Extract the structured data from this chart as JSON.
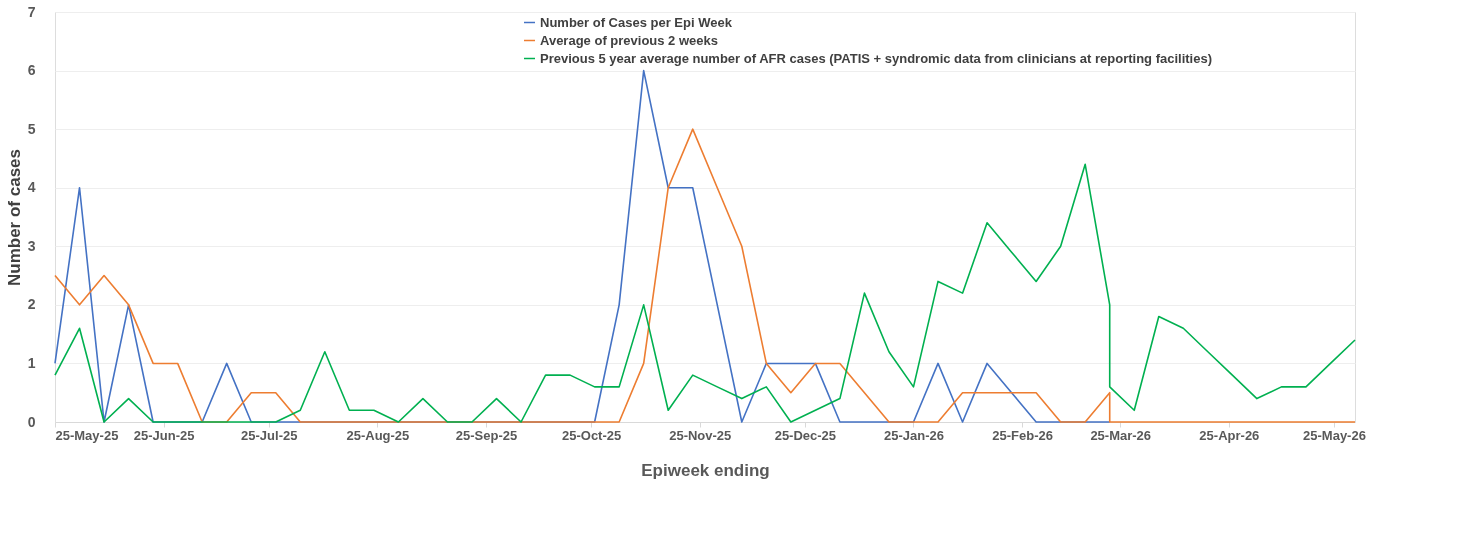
{
  "chart_data": {
    "type": "line",
    "xlabel": "Epiweek ending",
    "ylabel": "Number of cases",
    "x": [
      "2025-05-25",
      "2025-06-01",
      "2025-06-08",
      "2025-06-15",
      "2025-06-22",
      "2025-06-29",
      "2025-07-06",
      "2025-07-13",
      "2025-07-20",
      "2025-07-27",
      "2025-08-03",
      "2025-08-10",
      "2025-08-17",
      "2025-08-24",
      "2025-08-31",
      "2025-09-07",
      "2025-09-14",
      "2025-09-21",
      "2025-09-28",
      "2025-10-05",
      "2025-10-12",
      "2025-10-19",
      "2025-10-26",
      "2025-11-02",
      "2025-11-09",
      "2025-11-16",
      "2025-11-23",
      "2025-11-30",
      "2025-12-07",
      "2025-12-14",
      "2025-12-21",
      "2025-12-28",
      "2026-01-04",
      "2026-01-11",
      "2026-01-18",
      "2026-01-25",
      "2026-02-01",
      "2026-02-08",
      "2026-02-15",
      "2026-02-22",
      "2026-03-01",
      "2026-03-08",
      "2026-03-15",
      "2026-03-22",
      "2026-03-22",
      "2026-03-29",
      "2026-04-05",
      "2026-04-12",
      "2026-04-19",
      "2026-04-26",
      "2026-05-03",
      "2026-05-10",
      "2026-05-17",
      "2026-05-24",
      "2026-05-31"
    ],
    "series": [
      {
        "name": "Number of Cases per Epi Week",
        "color": "#4472c4",
        "values": [
          1,
          4,
          0,
          2,
          0,
          0,
          0,
          1,
          0,
          0,
          0,
          0,
          0,
          0,
          0,
          0,
          0,
          0,
          0,
          0,
          0,
          0,
          0,
          2,
          6,
          4,
          4,
          2,
          0,
          1,
          1,
          1,
          0,
          0,
          0,
          0,
          1,
          0,
          1,
          0.5,
          0,
          0,
          0,
          0,
          0,
          null,
          null,
          null,
          null,
          null,
          null,
          null,
          null,
          null,
          null
        ]
      },
      {
        "name": "Average of previous 2 weeks",
        "color": "#ed7d31",
        "values": [
          2.5,
          2,
          2.5,
          2,
          1,
          1,
          0,
          0,
          0.5,
          0.5,
          0,
          0,
          0,
          0,
          0,
          0,
          0,
          0,
          0,
          0,
          0,
          0,
          0,
          0,
          1,
          4,
          5,
          4,
          3,
          1,
          0.5,
          1,
          1,
          0.5,
          0,
          0,
          0,
          0.5,
          0.5,
          0.5,
          0.5,
          0,
          0,
          0.5,
          0,
          0,
          0,
          0,
          0,
          0,
          0,
          0,
          0,
          0,
          0
        ]
      },
      {
        "name": "Previous 5 year average number of AFR cases (PATIS + syndromic data from clinicians at reporting facilities)",
        "color": "#00b050",
        "values": [
          0.8,
          1.6,
          0,
          0.4,
          0,
          0,
          0,
          0,
          0,
          0,
          0.2,
          1.2,
          0.2,
          0.2,
          0,
          0.4,
          0,
          0,
          0.4,
          0,
          0.8,
          0.8,
          0.6,
          0.6,
          2,
          0.2,
          0.8,
          0.6,
          0.4,
          0.6,
          0,
          0.2,
          0.4,
          2.2,
          1.2,
          0.6,
          2.4,
          2.2,
          3.4,
          2.9,
          2.4,
          3,
          4.4,
          2,
          0.6,
          0.2,
          1.8,
          1.6,
          1.2,
          0.8,
          0.4,
          0.6,
          0.6,
          1,
          1.4
        ]
      }
    ],
    "xlim": [
      "2025-05-25",
      "2026-05-31"
    ],
    "xticks": [
      {
        "value": "2025-05-25",
        "label": "25-May-25"
      },
      {
        "value": "2025-06-25",
        "label": "25-Jun-25"
      },
      {
        "value": "2025-07-25",
        "label": "25-Jul-25"
      },
      {
        "value": "2025-08-25",
        "label": "25-Aug-25"
      },
      {
        "value": "2025-09-25",
        "label": "25-Sep-25"
      },
      {
        "value": "2025-10-25",
        "label": "25-Oct-25"
      },
      {
        "value": "2025-11-25",
        "label": "25-Nov-25"
      },
      {
        "value": "2025-12-25",
        "label": "25-Dec-25"
      },
      {
        "value": "2026-01-25",
        "label": "25-Jan-26"
      },
      {
        "value": "2026-02-25",
        "label": "25-Feb-26"
      },
      {
        "value": "2026-03-25",
        "label": "25-Mar-26"
      },
      {
        "value": "2026-04-25",
        "label": "25-Apr-26"
      },
      {
        "value": "2026-05-25",
        "label": "25-May-26"
      }
    ],
    "ylim": [
      0,
      7
    ],
    "yticks": [
      0,
      1,
      2,
      3,
      4,
      5,
      6,
      7
    ],
    "grid": "y",
    "legend": "top"
  }
}
